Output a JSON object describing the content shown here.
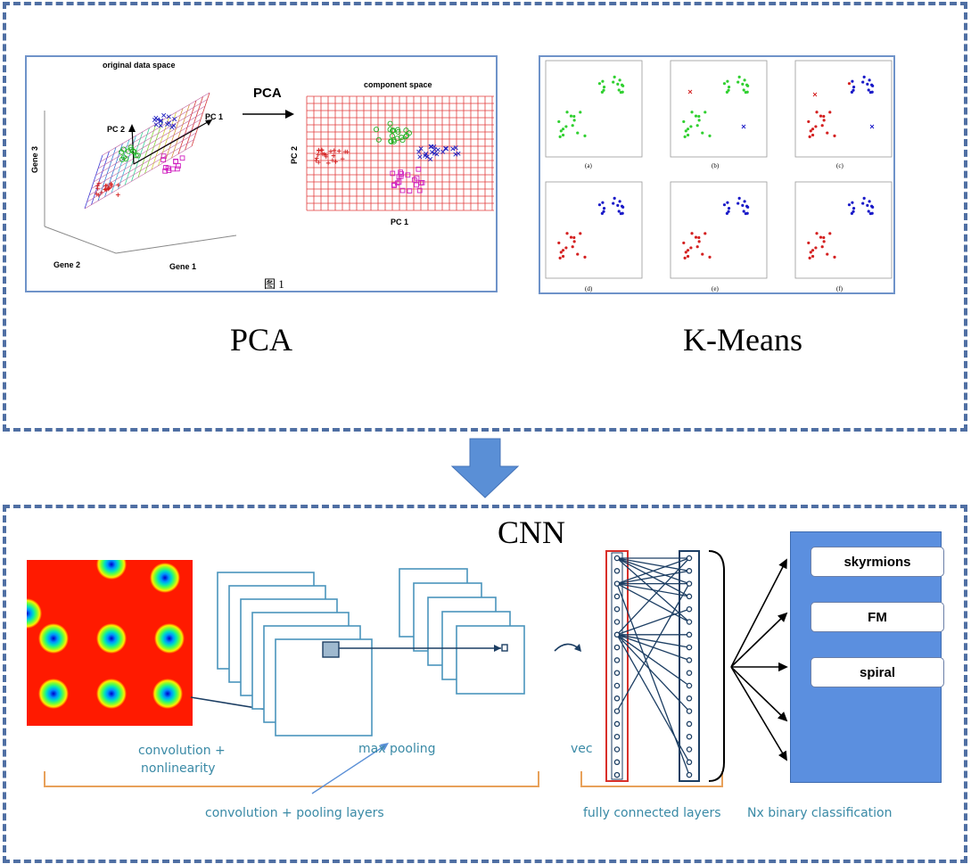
{
  "top_section": {
    "pca_panel": {
      "title_3d": "original data space",
      "axis_gene3": "Gene 3",
      "axis_gene2": "Gene 2",
      "axis_gene1": "Gene 1",
      "pc1": "PC 1",
      "pc2": "PC 2",
      "arrow_label": "PCA",
      "component_title": "component space",
      "comp_ylabel": "PC 2",
      "comp_xlabel": "PC 1",
      "figure_caption": "图 1"
    },
    "kmeans_panel": {
      "subplot_labels": [
        "(a)",
        "(b)",
        "(c)",
        "(d)",
        "(e)",
        "(f)"
      ]
    },
    "pca_label": "PCA",
    "kmeans_label": "K-Means"
  },
  "cnn_section": {
    "title": "CNN",
    "conv_label_line1": "convolution +",
    "conv_label_line2": "nonlinearity",
    "max_pooling": "max pooling",
    "conv_pool_layers": "convolution + pooling layers",
    "vec": "vec",
    "fully_connected": "fully connected layers",
    "nx_binary": "Nx binary classification",
    "classes": [
      "skyrmions",
      "FM",
      "spiral"
    ]
  },
  "colors": {
    "frame": "#4f6fa3",
    "down_arrow": "#5a8fd6",
    "class_panel": "#5b8fdf",
    "bracket": "#e8a15a",
    "cyan_text": "#3a8aa6"
  }
}
